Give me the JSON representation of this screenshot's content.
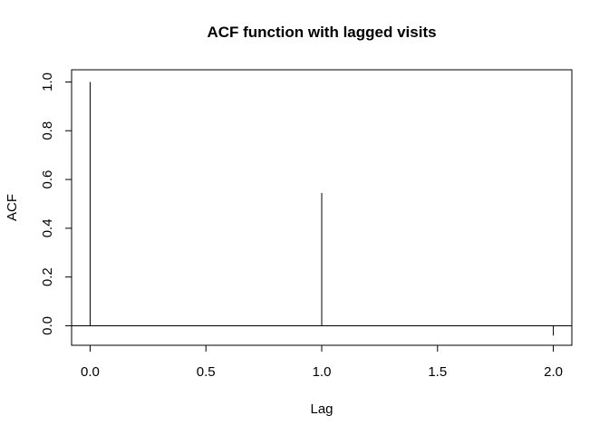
{
  "chart_data": {
    "type": "bar",
    "title": "ACF function with lagged visits",
    "xlabel": "Lag",
    "ylabel": "ACF",
    "x": [
      0,
      1,
      2
    ],
    "values": [
      1.0,
      0.545,
      -0.04
    ],
    "xlim": [
      -0.08,
      2.08
    ],
    "ylim": [
      -0.08,
      1.05
    ],
    "xticks": [
      "0.0",
      "0.5",
      "1.0",
      "1.5",
      "2.0"
    ],
    "yticks": [
      "0.0",
      "0.2",
      "0.4",
      "0.6",
      "0.8",
      "1.0"
    ],
    "grid": false,
    "zero_line": true
  }
}
